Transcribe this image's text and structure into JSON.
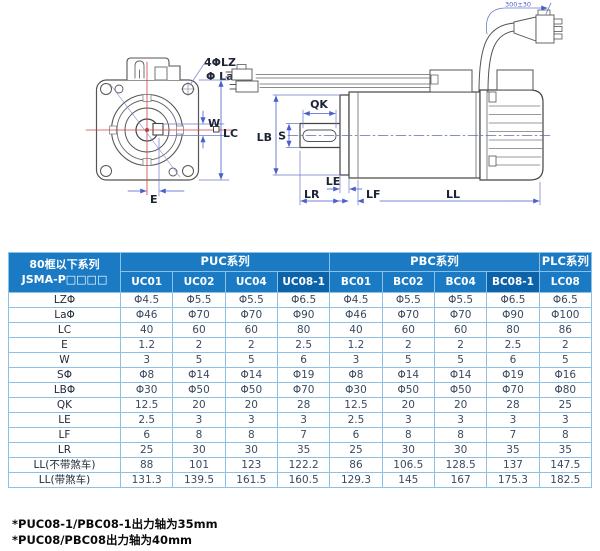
{
  "diagram": {
    "front": {
      "hole_label": "4ΦLZ",
      "hole_dia_label": "Φ La",
      "keyway_width_label": "W",
      "flange_size_label": "LC",
      "keyway_offset_label": "E"
    },
    "side": {
      "keyway_length_label": "QK",
      "pilot_dia_label": "LB",
      "shaft_dia_label": "S",
      "shaft_step_label": "LE",
      "shaft_length_label": "LR",
      "flange_thickness_label": "LF",
      "body_length_label": "LL",
      "cable_length_label": "300±30"
    }
  },
  "table": {
    "corner_header": [
      "80框以下系列",
      "JSMA-P□□□□"
    ],
    "groups": [
      {
        "label": "PUC系列",
        "span": 4
      },
      {
        "label": "PBC系列",
        "span": 4
      },
      {
        "label": "PLC系列",
        "span": 1
      }
    ],
    "models": [
      "UC01",
      "UC02",
      "UC04",
      "UC08-1",
      "BC01",
      "BC02",
      "BC04",
      "BC08-1",
      "LC08"
    ],
    "highlight_columns": [
      3,
      7
    ],
    "rows": [
      {
        "label": "LZΦ",
        "values": [
          "Φ4.5",
          "Φ5.5",
          "Φ5.5",
          "Φ6.5",
          "Φ4.5",
          "Φ5.5",
          "Φ5.5",
          "Φ6.5",
          "Φ6.5"
        ]
      },
      {
        "label": "LaΦ",
        "values": [
          "Φ46",
          "Φ70",
          "Φ70",
          "Φ90",
          "Φ46",
          "Φ70",
          "Φ70",
          "Φ90",
          "Φ100"
        ]
      },
      {
        "label": "LC",
        "values": [
          "40",
          "60",
          "60",
          "80",
          "40",
          "60",
          "60",
          "80",
          "86"
        ]
      },
      {
        "label": "E",
        "values": [
          "1.2",
          "2",
          "2",
          "2.5",
          "1.2",
          "2",
          "2",
          "2.5",
          "2"
        ]
      },
      {
        "label": "W",
        "values": [
          "3",
          "5",
          "5",
          "6",
          "3",
          "5",
          "5",
          "6",
          "5"
        ]
      },
      {
        "label": "SΦ",
        "values": [
          "Φ8",
          "Φ14",
          "Φ14",
          "Φ19",
          "Φ8",
          "Φ14",
          "Φ14",
          "Φ19",
          "Φ16"
        ]
      },
      {
        "label": "LBΦ",
        "values": [
          "Φ30",
          "Φ50",
          "Φ50",
          "Φ70",
          "Φ30",
          "Φ50",
          "Φ50",
          "Φ70",
          "Φ80"
        ]
      },
      {
        "label": "QK",
        "values": [
          "12.5",
          "20",
          "20",
          "28",
          "12.5",
          "20",
          "20",
          "28",
          "25"
        ]
      },
      {
        "label": "LE",
        "values": [
          "2.5",
          "3",
          "3",
          "3",
          "2.5",
          "3",
          "3",
          "3",
          "3"
        ]
      },
      {
        "label": "LF",
        "values": [
          "6",
          "8",
          "8",
          "7",
          "6",
          "8",
          "8",
          "7",
          "8"
        ]
      },
      {
        "label": "LR",
        "values": [
          "25",
          "30",
          "30",
          "35",
          "25",
          "30",
          "30",
          "35",
          "35"
        ]
      },
      {
        "label": "LL(不带煞车)",
        "values": [
          "88",
          "101",
          "123",
          "122.2",
          "86",
          "106.5",
          "128.5",
          "137",
          "147.5"
        ]
      },
      {
        "label": "LL(带煞车)",
        "values": [
          "131.3",
          "139.5",
          "161.5",
          "160.5",
          "129.3",
          "145",
          "167",
          "175.3",
          "182.5"
        ]
      }
    ]
  },
  "footnotes": [
    "*PUC08-1/PBC08-1出力轴为35mm",
    "*PUC08/PBC08出力轴为40mm"
  ],
  "colors": {
    "header_blue": "#1a7bc4",
    "header_dark_blue": "#0d63a9",
    "table_border": "#8cc0e6",
    "dimension_blue": "#4a5fc9",
    "centerline_red": "#cc4444"
  }
}
